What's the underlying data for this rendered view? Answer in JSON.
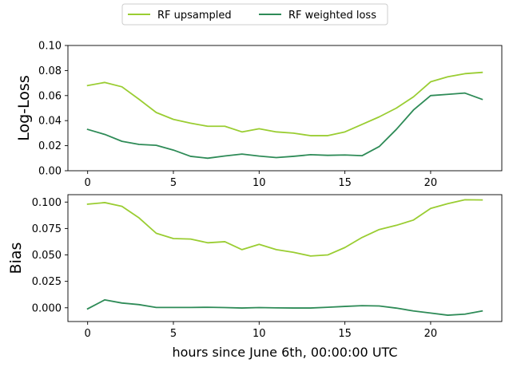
{
  "chart_data": [
    {
      "type": "line",
      "title": "",
      "xlabel": "",
      "ylabel": "Log-Loss",
      "xlim": [
        -1.15,
        24.15
      ],
      "ylim": [
        0.0,
        0.1
      ],
      "xticks": [
        "0",
        "5",
        "10",
        "15",
        "20"
      ],
      "yticks": [
        "0.00",
        "0.02",
        "0.04",
        "0.06",
        "0.08",
        "0.10"
      ],
      "x": [
        0,
        1,
        2,
        3,
        4,
        5,
        6,
        7,
        8,
        9,
        10,
        11,
        12,
        13,
        14,
        15,
        16,
        17,
        18,
        19,
        20,
        21,
        22,
        23
      ],
      "series": [
        {
          "name": "RF upsampled",
          "color": "#9acd32",
          "values": [
            0.068,
            0.0705,
            0.067,
            0.057,
            0.0465,
            0.041,
            0.038,
            0.0355,
            0.0355,
            0.031,
            0.0335,
            0.031,
            0.03,
            0.028,
            0.028,
            0.031,
            0.037,
            0.043,
            0.05,
            0.059,
            0.071,
            0.075,
            0.0775,
            0.0785
          ]
        },
        {
          "name": "RF weighted loss",
          "color": "#2e8b57",
          "values": [
            0.033,
            0.029,
            0.0235,
            0.021,
            0.0203,
            0.0165,
            0.0115,
            0.01,
            0.0118,
            0.0133,
            0.0117,
            0.0105,
            0.0115,
            0.0128,
            0.0123,
            0.0126,
            0.012,
            0.0193,
            0.033,
            0.0485,
            0.06,
            0.061,
            0.062,
            0.057
          ]
        }
      ]
    },
    {
      "type": "line",
      "title": "",
      "xlabel": "hours since June 6th, 00:00:00 UTC",
      "ylabel": "Bias",
      "xlim": [
        -1.15,
        24.15
      ],
      "ylim": [
        -0.013,
        0.107
      ],
      "xticks": [
        "0",
        "5",
        "10",
        "15",
        "20"
      ],
      "yticks": [
        "0.000",
        "0.025",
        "0.050",
        "0.075",
        "0.100"
      ],
      "x": [
        0,
        1,
        2,
        3,
        4,
        5,
        6,
        7,
        8,
        9,
        10,
        11,
        12,
        13,
        14,
        15,
        16,
        17,
        18,
        19,
        20,
        21,
        22,
        23
      ],
      "series": [
        {
          "name": "RF upsampled",
          "color": "#9acd32",
          "values": [
            0.098,
            0.0995,
            0.096,
            0.085,
            0.0705,
            0.0655,
            0.065,
            0.0615,
            0.0625,
            0.055,
            0.06,
            0.055,
            0.0525,
            0.049,
            0.05,
            0.057,
            0.0665,
            0.074,
            0.078,
            0.083,
            0.094,
            0.0985,
            0.1022,
            0.102
          ]
        },
        {
          "name": "RF weighted loss",
          "color": "#2e8b57",
          "values": [
            -0.001,
            0.0075,
            0.0045,
            0.003,
            0.0003,
            0.0003,
            0.0003,
            0.0005,
            0.0002,
            -0.0002,
            0.0002,
            -0.0001,
            -0.0002,
            -0.0002,
            0.0005,
            0.0013,
            0.002,
            0.0017,
            -0.0003,
            -0.003,
            -0.005,
            -0.007,
            -0.006,
            -0.003
          ]
        }
      ]
    }
  ],
  "legend": {
    "placement": "top-center",
    "entries": [
      {
        "label": "RF upsampled",
        "color": "#9acd32"
      },
      {
        "label": "RF weighted loss",
        "color": "#2e8b57"
      }
    ]
  }
}
